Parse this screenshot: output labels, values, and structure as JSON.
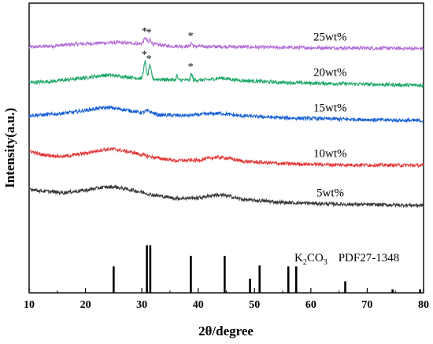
{
  "chart_data": {
    "type": "line",
    "xlabel": "2θ/degree",
    "ylabel": "Intensity(a.u.)",
    "xlim": [
      10,
      80
    ],
    "x_ticks": [
      10,
      20,
      30,
      40,
      50,
      60,
      70,
      80
    ],
    "series": [
      {
        "name": "25wt%",
        "color": "#b46ed6",
        "base": 0.845,
        "points": [
          [
            10,
            0.848
          ],
          [
            14,
            0.852
          ],
          [
            18,
            0.858
          ],
          [
            22,
            0.862
          ],
          [
            25,
            0.864
          ],
          [
            28,
            0.862
          ],
          [
            30,
            0.86
          ],
          [
            30.6,
            0.88
          ],
          [
            31.2,
            0.862
          ],
          [
            31.4,
            0.876
          ],
          [
            32,
            0.858
          ],
          [
            35,
            0.852
          ],
          [
            38.5,
            0.851
          ],
          [
            38.8,
            0.864
          ],
          [
            39.2,
            0.851
          ],
          [
            42,
            0.85
          ],
          [
            45,
            0.85
          ],
          [
            50,
            0.848
          ],
          [
            60,
            0.846
          ],
          [
            70,
            0.845
          ],
          [
            80,
            0.843
          ]
        ],
        "peaks_marked": [
          30.6,
          31.4,
          38.8
        ]
      },
      {
        "name": "20wt%",
        "color": "#1fa868",
        "base": 0.72,
        "points": [
          [
            10,
            0.726
          ],
          [
            14,
            0.73
          ],
          [
            18,
            0.738
          ],
          [
            22,
            0.748
          ],
          [
            24,
            0.752
          ],
          [
            27,
            0.746
          ],
          [
            30,
            0.74
          ],
          [
            30.6,
            0.8
          ],
          [
            31.0,
            0.745
          ],
          [
            31.4,
            0.785
          ],
          [
            32,
            0.738
          ],
          [
            36,
            0.735
          ],
          [
            36.2,
            0.752
          ],
          [
            36.5,
            0.735
          ],
          [
            38.5,
            0.734
          ],
          [
            38.8,
            0.758
          ],
          [
            39.2,
            0.734
          ],
          [
            42,
            0.736
          ],
          [
            44,
            0.742
          ],
          [
            47,
            0.734
          ],
          [
            55,
            0.726
          ],
          [
            65,
            0.722
          ],
          [
            80,
            0.716
          ]
        ],
        "peaks_marked": [
          30.6,
          31.4,
          38.8
        ]
      },
      {
        "name": "15wt%",
        "color": "#1b62d6",
        "base": 0.6,
        "points": [
          [
            10,
            0.612
          ],
          [
            14,
            0.616
          ],
          [
            18,
            0.624
          ],
          [
            22,
            0.636
          ],
          [
            24,
            0.64
          ],
          [
            27,
            0.632
          ],
          [
            30,
            0.622
          ],
          [
            31,
            0.628
          ],
          [
            33,
            0.614
          ],
          [
            38,
            0.612
          ],
          [
            42,
            0.618
          ],
          [
            44,
            0.62
          ],
          [
            47,
            0.612
          ],
          [
            55,
            0.604
          ],
          [
            65,
            0.6
          ],
          [
            80,
            0.594
          ]
        ]
      },
      {
        "name": "10wt%",
        "color": "#e23a3a",
        "base": 0.46,
        "points": [
          [
            10,
            0.49
          ],
          [
            12,
            0.478
          ],
          [
            16,
            0.47
          ],
          [
            20,
            0.482
          ],
          [
            23,
            0.494
          ],
          [
            25,
            0.496
          ],
          [
            28,
            0.486
          ],
          [
            32,
            0.468
          ],
          [
            36,
            0.456
          ],
          [
            40,
            0.458
          ],
          [
            43,
            0.468
          ],
          [
            45,
            0.466
          ],
          [
            48,
            0.454
          ],
          [
            55,
            0.446
          ],
          [
            65,
            0.442
          ],
          [
            80,
            0.44
          ]
        ]
      },
      {
        "name": "5wt%",
        "color": "#3a3a3a",
        "base": 0.32,
        "points": [
          [
            10,
            0.36
          ],
          [
            12,
            0.352
          ],
          [
            16,
            0.346
          ],
          [
            20,
            0.354
          ],
          [
            23,
            0.364
          ],
          [
            25,
            0.366
          ],
          [
            28,
            0.356
          ],
          [
            32,
            0.338
          ],
          [
            36,
            0.326
          ],
          [
            40,
            0.328
          ],
          [
            43,
            0.338
          ],
          [
            45,
            0.336
          ],
          [
            48,
            0.322
          ],
          [
            55,
            0.312
          ],
          [
            65,
            0.306
          ],
          [
            80,
            0.302
          ]
        ]
      }
    ],
    "reference": {
      "label_compound": "K",
      "label_sub": "2",
      "label_rest": "CO",
      "label_sub2": "3",
      "label_pdf": "PDF27-1348",
      "lines": [
        [
          25.0,
          0.3
        ],
        [
          30.9,
          0.54
        ],
        [
          31.5,
          0.54
        ],
        [
          38.7,
          0.42
        ],
        [
          44.7,
          0.42
        ],
        [
          49.2,
          0.16
        ],
        [
          50.9,
          0.31
        ],
        [
          56.0,
          0.3
        ],
        [
          57.4,
          0.3
        ],
        [
          66.1,
          0.13
        ],
        [
          74.5,
          0.04
        ],
        [
          79.4,
          0.04
        ]
      ]
    }
  }
}
